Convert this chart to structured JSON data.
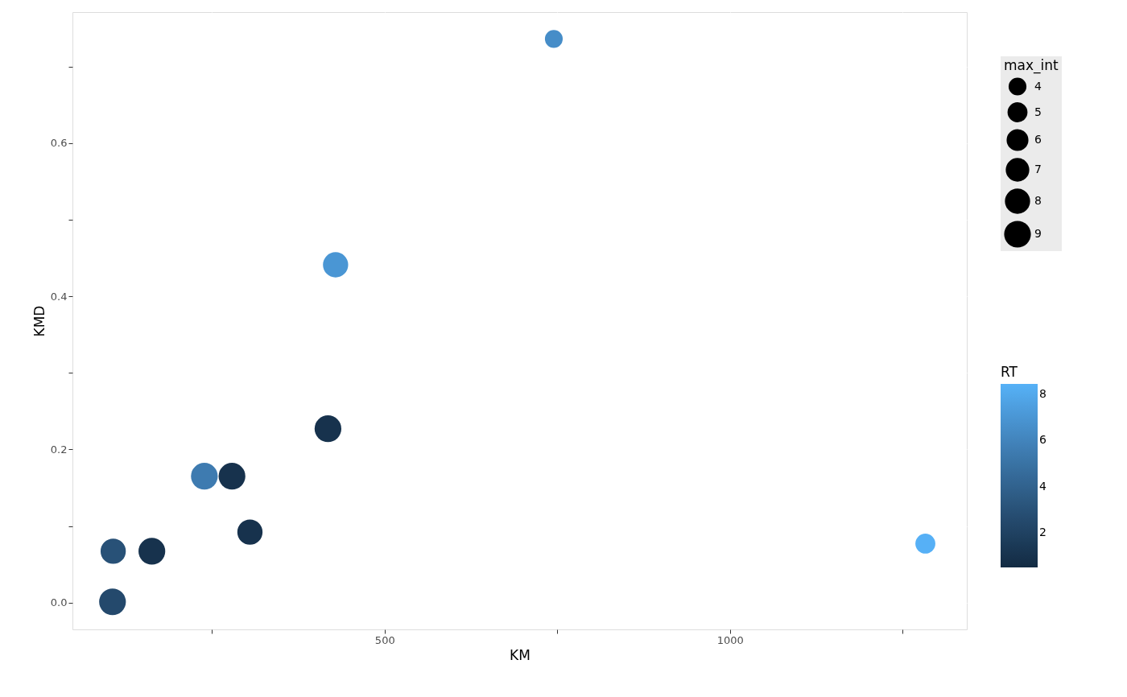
{
  "chart_data": {
    "type": "bubble",
    "xlabel": "KM",
    "ylabel": "KMD",
    "legend_title": "max_int",
    "clabel": "RT",
    "x": [
      106,
      107,
      163,
      239,
      279,
      305,
      418,
      429,
      745,
      1283
    ],
    "values": [
      0.001,
      0.067,
      0.067,
      0.165,
      0.165,
      0.092,
      0.227,
      0.441,
      0.736,
      0.077
    ],
    "sizes": [
      9,
      8,
      9,
      9,
      9,
      8,
      9,
      8,
      4,
      5
    ],
    "size_legend": [
      4,
      5,
      6,
      7,
      8,
      9
    ],
    "cvalues": [
      2.5,
      3,
      1,
      5.5,
      1,
      1,
      1,
      7,
      6.5,
      8.4
    ],
    "clim": [
      0.5,
      8.45
    ],
    "cticks": [
      2,
      4,
      6,
      8
    ],
    "xlim": [
      48,
      1343
    ],
    "ylim": [
      -0.035,
      0.771
    ],
    "xticks": [
      {
        "value": 250,
        "label": null
      },
      500,
      {
        "value": 750,
        "label": null
      },
      1000,
      {
        "value": 1250,
        "label": null
      }
    ],
    "yticks": [
      {
        "value": 0,
        "label": "0.0"
      },
      {
        "value": 0.1,
        "label": null
      },
      {
        "value": 0.2,
        "label": "0.2"
      },
      {
        "value": 0.3,
        "label": null
      },
      {
        "value": 0.4,
        "label": "0.4"
      },
      {
        "value": 0.5,
        "label": null
      },
      {
        "value": 0.6,
        "label": "0.6"
      },
      {
        "value": 0.7,
        "label": null
      }
    ],
    "grid": true
  }
}
